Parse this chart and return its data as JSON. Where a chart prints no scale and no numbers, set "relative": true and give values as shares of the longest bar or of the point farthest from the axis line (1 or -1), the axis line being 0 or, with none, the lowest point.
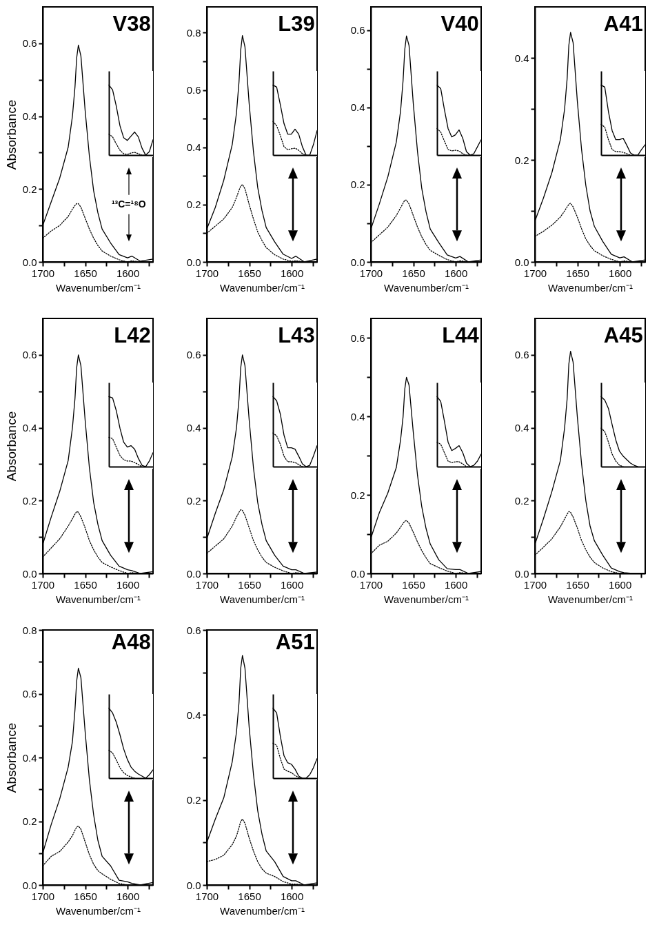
{
  "chart_data": [
    {
      "type": "line",
      "title": "V38",
      "ylabel": "Absorbance",
      "xlabel": "Wavenumber/cm⁻¹",
      "xlim": [
        1700,
        1570
      ],
      "xticks": [
        1700,
        {
          "value": 1675,
          "label": null
        },
        1650,
        {
          "value": 1625,
          "label": null
        },
        1600,
        {
          "value": 1575,
          "label": null
        }
      ],
      "ylim": [
        0,
        0.7
      ],
      "yticks": [
        {
          "value": 0,
          "label": "0.0"
        },
        {
          "value": 0.1,
          "label": null
        },
        0.2,
        {
          "value": 0.3,
          "label": null
        },
        0.4,
        {
          "value": 0.5,
          "label": null
        },
        0.6
      ],
      "x": [
        1700,
        1690,
        1680,
        1670,
        1665,
        1662,
        1660,
        1658,
        1655,
        1650,
        1645,
        1640,
        1635,
        1630,
        1620,
        1610,
        1600,
        1595,
        1585,
        1570
      ],
      "annotations": [
        "¹³C=¹⁸O"
      ],
      "series": [
        {
          "color": "#000000",
          "line_style": "solid",
          "values": [
            0.1,
            0.165,
            0.23,
            0.315,
            0.4,
            0.48,
            0.56,
            0.595,
            0.565,
            0.415,
            0.29,
            0.195,
            0.135,
            0.09,
            0.052,
            0.02,
            0.011,
            0.016,
            0.002,
            0.008
          ]
        },
        {
          "color": "#000000",
          "line_style": "dotted",
          "values": [
            0.065,
            0.085,
            0.1,
            0.125,
            0.145,
            0.155,
            0.16,
            0.16,
            0.15,
            0.12,
            0.09,
            0.065,
            0.045,
            0.03,
            0.016,
            0.006,
            0.0,
            0.003,
            0.0,
            0.0
          ]
        }
      ]
    },
    {
      "type": "line",
      "relative": true,
      "categories": [
        null,
        null,
        null,
        null,
        null,
        null,
        null,
        null,
        null,
        null,
        null,
        null,
        null
      ],
      "series": [
        {
          "color": "#000000",
          "line_style": "solid",
          "values": [
            1,
            0.93,
            0.7,
            0.42,
            0.25,
            0.21,
            0.27,
            0.33,
            0.26,
            0.1,
            0.0,
            0.05,
            0.22
          ]
        },
        {
          "color": "#000000",
          "line_style": "dotted",
          "values": [
            0.3,
            0.26,
            0.16,
            0.07,
            0.02,
            0.01,
            0.03,
            0.04,
            0.02,
            0.0,
            0.0,
            null,
            null
          ]
        }
      ]
    },
    {
      "type": "line",
      "title": "L39",
      "xlabel": "Wavenumber/cm⁻¹",
      "xlim": [
        1700,
        1570
      ],
      "xticks": [
        1700,
        {
          "value": 1675,
          "label": null
        },
        1650,
        {
          "value": 1625,
          "label": null
        },
        1600,
        {
          "value": 1575,
          "label": null
        }
      ],
      "ylim": [
        0,
        0.89
      ],
      "yticks": [
        {
          "value": 0,
          "label": "0.0"
        },
        {
          "value": 0.1,
          "label": null
        },
        0.2,
        {
          "value": 0.3,
          "label": null
        },
        0.4,
        {
          "value": 0.5,
          "label": null
        },
        0.6,
        {
          "value": 0.7,
          "label": null
        },
        0.8
      ],
      "x": [
        1700,
        1690,
        1680,
        1670,
        1665,
        1662,
        1660,
        1658,
        1655,
        1650,
        1645,
        1640,
        1635,
        1630,
        1620,
        1610,
        1600,
        1595,
        1585,
        1570
      ],
      "series": [
        {
          "color": "#000000",
          "line_style": "solid",
          "values": [
            0.115,
            0.19,
            0.285,
            0.41,
            0.52,
            0.63,
            0.74,
            0.79,
            0.75,
            0.55,
            0.385,
            0.26,
            0.18,
            0.12,
            0.07,
            0.027,
            0.012,
            0.02,
            0.0,
            0.01
          ]
        },
        {
          "color": "#000000",
          "line_style": "dotted",
          "values": [
            0.1,
            0.125,
            0.15,
            0.19,
            0.225,
            0.25,
            0.265,
            0.27,
            0.255,
            0.2,
            0.15,
            0.105,
            0.075,
            0.05,
            0.025,
            0.01,
            0.002,
            0.004,
            0.0,
            0.0
          ]
        }
      ]
    },
    {
      "type": "line",
      "relative": true,
      "categories": [
        null,
        null,
        null,
        null,
        null,
        null,
        null,
        null,
        null,
        null,
        null,
        null,
        null
      ],
      "series": [
        {
          "color": "#000000",
          "line_style": "solid",
          "values": [
            1,
            0.97,
            0.72,
            0.45,
            0.3,
            0.3,
            0.37,
            0.3,
            0.12,
            0.0,
            0.0,
            0.15,
            0.35
          ]
        },
        {
          "color": "#000000",
          "line_style": "dotted",
          "values": [
            0.48,
            0.42,
            0.28,
            0.12,
            0.08,
            0.09,
            0.1,
            0.07,
            0.02,
            0.0,
            null,
            null,
            null
          ]
        }
      ]
    },
    {
      "type": "line",
      "title": "V40",
      "xlabel": "Wavenumber/cm⁻¹",
      "xlim": [
        1700,
        1570
      ],
      "xticks": [
        1700,
        {
          "value": 1675,
          "label": null
        },
        1650,
        {
          "value": 1625,
          "label": null
        },
        1600,
        {
          "value": 1575,
          "label": null
        }
      ],
      "ylim": [
        0,
        0.66
      ],
      "yticks": [
        {
          "value": 0,
          "label": "0.0"
        },
        {
          "value": 0.1,
          "label": null
        },
        0.2,
        {
          "value": 0.3,
          "label": null
        },
        0.4,
        {
          "value": 0.5,
          "label": null
        },
        0.6
      ],
      "x": [
        1700,
        1690,
        1680,
        1670,
        1665,
        1662,
        1660,
        1658,
        1655,
        1650,
        1645,
        1640,
        1635,
        1630,
        1620,
        1610,
        1600,
        1595,
        1585,
        1570
      ],
      "series": [
        {
          "color": "#000000",
          "line_style": "solid",
          "values": [
            0.085,
            0.15,
            0.22,
            0.31,
            0.39,
            0.47,
            0.55,
            0.585,
            0.56,
            0.41,
            0.285,
            0.19,
            0.13,
            0.085,
            0.05,
            0.018,
            0.01,
            0.014,
            0.0,
            0.005
          ]
        },
        {
          "color": "#000000",
          "line_style": "dotted",
          "values": [
            0.05,
            0.07,
            0.09,
            0.12,
            0.14,
            0.152,
            0.16,
            0.16,
            0.15,
            0.12,
            0.09,
            0.065,
            0.045,
            0.03,
            0.017,
            0.006,
            0.0,
            0.003,
            0.0,
            0.0
          ]
        }
      ]
    },
    {
      "type": "line",
      "relative": true,
      "categories": [
        null,
        null,
        null,
        null,
        null,
        null,
        null,
        null,
        null,
        null,
        null,
        null,
        null
      ],
      "series": [
        {
          "color": "#000000",
          "line_style": "solid",
          "values": [
            1,
            0.95,
            0.65,
            0.38,
            0.26,
            0.29,
            0.36,
            0.24,
            0.05,
            0.0,
            0.02,
            0.12,
            0.22
          ]
        },
        {
          "color": "#000000",
          "line_style": "dotted",
          "values": [
            0.38,
            0.33,
            0.2,
            0.08,
            0.06,
            0.07,
            0.06,
            0.02,
            0.0,
            0.0,
            null,
            null,
            null
          ]
        }
      ]
    },
    {
      "type": "line",
      "title": "A41",
      "xlabel": "Wavenumber/cm⁻¹",
      "xlim": [
        1700,
        1570
      ],
      "xticks": [
        1700,
        {
          "value": 1675,
          "label": null
        },
        1650,
        {
          "value": 1625,
          "label": null
        },
        1600,
        {
          "value": 1575,
          "label": null
        }
      ],
      "ylim": [
        0,
        0.5
      ],
      "yticks": [
        {
          "value": 0,
          "label": "0.0"
        },
        {
          "value": 0.1,
          "label": null
        },
        0.2,
        {
          "value": 0.3,
          "label": null
        },
        0.4
      ],
      "x": [
        1700,
        1690,
        1680,
        1670,
        1665,
        1662,
        1660,
        1658,
        1655,
        1650,
        1645,
        1640,
        1635,
        1630,
        1620,
        1610,
        1600,
        1595,
        1585,
        1570
      ],
      "series": [
        {
          "color": "#000000",
          "line_style": "solid",
          "values": [
            0.08,
            0.125,
            0.175,
            0.24,
            0.3,
            0.36,
            0.425,
            0.45,
            0.43,
            0.315,
            0.22,
            0.15,
            0.1,
            0.07,
            0.04,
            0.015,
            0.008,
            0.01,
            0.0,
            0.004
          ]
        },
        {
          "color": "#000000",
          "line_style": "dotted",
          "values": [
            0.05,
            0.06,
            0.072,
            0.088,
            0.1,
            0.108,
            0.113,
            0.115,
            0.108,
            0.088,
            0.065,
            0.045,
            0.032,
            0.022,
            0.012,
            0.005,
            0.0,
            0.002,
            0.0,
            0.0
          ]
        }
      ]
    },
    {
      "type": "line",
      "relative": true,
      "categories": [
        null,
        null,
        null,
        null,
        null,
        null,
        null,
        null,
        null,
        null,
        null,
        null,
        null
      ],
      "series": [
        {
          "color": "#000000",
          "line_style": "solid",
          "values": [
            1,
            0.97,
            0.62,
            0.35,
            0.22,
            0.22,
            0.24,
            0.14,
            0.03,
            0.0,
            0.0,
            0.08,
            0.15
          ]
        },
        {
          "color": "#000000",
          "line_style": "dotted",
          "values": [
            0.44,
            0.4,
            0.22,
            0.08,
            0.05,
            0.05,
            0.04,
            0.02,
            0.0,
            null,
            null,
            null,
            null
          ]
        }
      ]
    },
    {
      "type": "line",
      "title": "L42",
      "ylabel": "Absorbance",
      "xlabel": "Wavenumber/cm⁻¹",
      "xlim": [
        1700,
        1570
      ],
      "xticks": [
        1700,
        {
          "value": 1675,
          "label": null
        },
        1650,
        {
          "value": 1625,
          "label": null
        },
        1600,
        {
          "value": 1575,
          "label": null
        }
      ],
      "ylim": [
        0,
        0.7
      ],
      "yticks": [
        {
          "value": 0,
          "label": "0.0"
        },
        {
          "value": 0.1,
          "label": null
        },
        0.2,
        {
          "value": 0.3,
          "label": null
        },
        0.4,
        {
          "value": 0.5,
          "label": null
        },
        0.6
      ],
      "x": [
        1700,
        1690,
        1680,
        1670,
        1665,
        1662,
        1660,
        1658,
        1655,
        1650,
        1645,
        1640,
        1635,
        1630,
        1620,
        1610,
        1600,
        1595,
        1585,
        1570
      ],
      "series": [
        {
          "color": "#000000",
          "line_style": "solid",
          "values": [
            0.08,
            0.155,
            0.225,
            0.31,
            0.4,
            0.48,
            0.565,
            0.6,
            0.57,
            0.42,
            0.29,
            0.195,
            0.135,
            0.09,
            0.05,
            0.02,
            0.01,
            0.008,
            0.0,
            0.005
          ]
        },
        {
          "color": "#000000",
          "line_style": "dotted",
          "values": [
            0.045,
            0.07,
            0.095,
            0.13,
            0.15,
            0.163,
            0.17,
            0.168,
            0.155,
            0.125,
            0.09,
            0.065,
            0.045,
            0.03,
            0.018,
            0.008,
            0.0,
            0.002,
            0.0,
            0.0
          ]
        }
      ]
    },
    {
      "type": "line",
      "relative": true,
      "categories": [
        null,
        null,
        null,
        null,
        null,
        null,
        null,
        null,
        null,
        null,
        null,
        null,
        null
      ],
      "series": [
        {
          "color": "#000000",
          "line_style": "solid",
          "values": [
            1,
            0.98,
            0.8,
            0.55,
            0.35,
            0.28,
            0.3,
            0.25,
            0.12,
            0.02,
            0.0,
            0.08,
            0.2
          ]
        },
        {
          "color": "#000000",
          "line_style": "dotted",
          "values": [
            0.42,
            0.4,
            0.28,
            0.16,
            0.1,
            0.08,
            0.08,
            0.06,
            0.03,
            0.0,
            null,
            null,
            null
          ]
        }
      ]
    },
    {
      "type": "line",
      "title": "L43",
      "xlabel": "Wavenumber/cm⁻¹",
      "xlim": [
        1700,
        1570
      ],
      "xticks": [
        1700,
        {
          "value": 1675,
          "label": null
        },
        1650,
        {
          "value": 1625,
          "label": null
        },
        1600,
        {
          "value": 1575,
          "label": null
        }
      ],
      "ylim": [
        0,
        0.7
      ],
      "yticks": [
        {
          "value": 0,
          "label": "0.0"
        },
        {
          "value": 0.1,
          "label": null
        },
        0.2,
        {
          "value": 0.3,
          "label": null
        },
        0.4,
        {
          "value": 0.5,
          "label": null
        },
        0.6
      ],
      "x": [
        1700,
        1690,
        1680,
        1670,
        1665,
        1662,
        1660,
        1658,
        1655,
        1650,
        1645,
        1640,
        1635,
        1630,
        1620,
        1610,
        1600,
        1595,
        1585,
        1570
      ],
      "series": [
        {
          "color": "#000000",
          "line_style": "solid",
          "values": [
            0.095,
            0.165,
            0.23,
            0.32,
            0.4,
            0.48,
            0.565,
            0.6,
            0.57,
            0.42,
            0.29,
            0.195,
            0.135,
            0.09,
            0.05,
            0.02,
            0.01,
            0.01,
            0.0,
            0.004
          ]
        },
        {
          "color": "#000000",
          "line_style": "dotted",
          "values": [
            0.055,
            0.075,
            0.095,
            0.13,
            0.155,
            0.168,
            0.175,
            0.173,
            0.16,
            0.125,
            0.09,
            0.065,
            0.045,
            0.03,
            0.017,
            0.007,
            0.0,
            0.002,
            0.0,
            0.0
          ]
        }
      ]
    },
    {
      "type": "line",
      "relative": true,
      "categories": [
        null,
        null,
        null,
        null,
        null,
        null,
        null,
        null,
        null,
        null,
        null,
        null,
        null
      ],
      "series": [
        {
          "color": "#000000",
          "line_style": "solid",
          "values": [
            1,
            0.94,
            0.75,
            0.45,
            0.27,
            0.27,
            0.25,
            0.15,
            0.04,
            0.0,
            0.02,
            0.15,
            0.3
          ]
        },
        {
          "color": "#000000",
          "line_style": "dotted",
          "values": [
            0.48,
            0.44,
            0.32,
            0.15,
            0.07,
            0.07,
            0.06,
            0.03,
            0.0,
            null,
            null,
            null,
            null
          ]
        }
      ]
    },
    {
      "type": "line",
      "title": "L44",
      "xlabel": "Wavenumber/cm⁻¹",
      "xlim": [
        1700,
        1570
      ],
      "xticks": [
        1700,
        {
          "value": 1675,
          "label": null
        },
        1650,
        {
          "value": 1625,
          "label": null
        },
        1600,
        {
          "value": 1575,
          "label": null
        }
      ],
      "ylim": [
        0,
        0.65
      ],
      "yticks": [
        {
          "value": 0,
          "label": "0.0"
        },
        {
          "value": 0.1,
          "label": null
        },
        0.2,
        {
          "value": 0.3,
          "label": null
        },
        0.4,
        {
          "value": 0.5,
          "label": null
        },
        0.6
      ],
      "x": [
        1700,
        1690,
        1680,
        1670,
        1665,
        1662,
        1660,
        1658,
        1655,
        1650,
        1645,
        1640,
        1635,
        1630,
        1620,
        1610,
        1600,
        1595,
        1585,
        1570
      ],
      "series": [
        {
          "color": "#000000",
          "line_style": "solid",
          "values": [
            0.09,
            0.155,
            0.205,
            0.27,
            0.34,
            0.4,
            0.47,
            0.5,
            0.48,
            0.36,
            0.25,
            0.17,
            0.115,
            0.075,
            0.035,
            0.012,
            0.01,
            0.01,
            0.0,
            0.005
          ]
        },
        {
          "color": "#000000",
          "line_style": "dotted",
          "values": [
            0.05,
            0.072,
            0.082,
            0.103,
            0.118,
            0.128,
            0.133,
            0.135,
            0.128,
            0.105,
            0.08,
            0.058,
            0.04,
            0.025,
            0.015,
            0.006,
            0.0,
            0.002,
            0.0,
            0.0
          ]
        }
      ]
    },
    {
      "type": "line",
      "relative": true,
      "categories": [
        null,
        null,
        null,
        null,
        null,
        null,
        null,
        null,
        null,
        null,
        null,
        null,
        null
      ],
      "series": [
        {
          "color": "#000000",
          "line_style": "solid",
          "values": [
            1,
            0.93,
            0.65,
            0.35,
            0.23,
            0.26,
            0.3,
            0.2,
            0.05,
            0.0,
            0.02,
            0.08,
            0.18
          ]
        },
        {
          "color": "#000000",
          "line_style": "dotted",
          "values": [
            0.35,
            0.32,
            0.2,
            0.08,
            0.06,
            0.07,
            0.07,
            0.04,
            0.0,
            0.0,
            null,
            null,
            null
          ]
        }
      ]
    },
    {
      "type": "line",
      "title": "A45",
      "xlabel": "Wavenumber/cm⁻¹",
      "xlim": [
        1700,
        1570
      ],
      "xticks": [
        1700,
        {
          "value": 1675,
          "label": null
        },
        1650,
        {
          "value": 1625,
          "label": null
        },
        1600,
        {
          "value": 1575,
          "label": null
        }
      ],
      "ylim": [
        0,
        0.7
      ],
      "yticks": [
        {
          "value": 0,
          "label": "0.0"
        },
        {
          "value": 0.1,
          "label": null
        },
        0.2,
        {
          "value": 0.3,
          "label": null
        },
        0.4,
        {
          "value": 0.5,
          "label": null
        },
        0.6
      ],
      "x": [
        1700,
        1690,
        1680,
        1670,
        1665,
        1662,
        1660,
        1658,
        1655,
        1650,
        1645,
        1640,
        1635,
        1630,
        1620,
        1610,
        1600,
        1595,
        1585,
        1570
      ],
      "series": [
        {
          "color": "#000000",
          "line_style": "solid",
          "values": [
            0.08,
            0.15,
            0.225,
            0.31,
            0.4,
            0.48,
            0.575,
            0.61,
            0.58,
            0.43,
            0.3,
            0.2,
            0.13,
            0.09,
            0.05,
            0.015,
            0.005,
            0.002,
            0.0,
            0.0
          ]
        },
        {
          "color": "#000000",
          "line_style": "dotted",
          "values": [
            0.05,
            0.072,
            0.095,
            0.128,
            0.15,
            0.163,
            0.17,
            0.168,
            0.155,
            0.125,
            0.09,
            0.065,
            0.045,
            0.03,
            0.015,
            0.005,
            0.0,
            0.0,
            0.0,
            0.0
          ]
        }
      ]
    },
    {
      "type": "line",
      "relative": true,
      "categories": [
        null,
        null,
        null,
        null,
        null,
        null,
        null,
        null,
        null,
        null,
        null,
        null,
        null
      ],
      "series": [
        {
          "color": "#000000",
          "line_style": "solid",
          "values": [
            1,
            0.95,
            0.83,
            0.6,
            0.38,
            0.22,
            0.15,
            0.1,
            0.05,
            0.02,
            0.0,
            null,
            null
          ]
        },
        {
          "color": "#000000",
          "line_style": "dotted",
          "values": [
            0.55,
            0.5,
            0.35,
            0.18,
            0.08,
            0.02,
            0.0,
            null,
            null,
            null,
            null,
            null,
            null
          ]
        }
      ]
    },
    {
      "type": "line",
      "title": "A48",
      "ylabel": "Absorbance",
      "xlabel": "Wavenumber/cm⁻¹",
      "xlim": [
        1700,
        1570
      ],
      "xticks": [
        1700,
        {
          "value": 1675,
          "label": null
        },
        1650,
        {
          "value": 1625,
          "label": null
        },
        1600,
        {
          "value": 1575,
          "label": null
        }
      ],
      "ylim": [
        0,
        0.8
      ],
      "yticks": [
        {
          "value": 0,
          "label": "0.0"
        },
        {
          "value": 0.1,
          "label": null
        },
        0.2,
        {
          "value": 0.3,
          "label": null
        },
        0.4,
        {
          "value": 0.5,
          "label": null
        },
        0.6,
        {
          "value": 0.7,
          "label": null
        },
        0.8
      ],
      "x": [
        1700,
        1690,
        1680,
        1670,
        1665,
        1662,
        1660,
        1658,
        1655,
        1650,
        1645,
        1640,
        1635,
        1630,
        1620,
        1610,
        1600,
        1595,
        1585,
        1570
      ],
      "series": [
        {
          "color": "#000000",
          "line_style": "solid",
          "values": [
            0.1,
            0.19,
            0.27,
            0.37,
            0.45,
            0.55,
            0.64,
            0.68,
            0.65,
            0.48,
            0.33,
            0.22,
            0.14,
            0.09,
            0.06,
            0.015,
            0.01,
            0.005,
            0.0,
            0.008
          ]
        },
        {
          "color": "#000000",
          "line_style": "dotted",
          "values": [
            0.06,
            0.09,
            0.105,
            0.135,
            0.155,
            0.172,
            0.182,
            0.185,
            0.175,
            0.135,
            0.095,
            0.065,
            0.045,
            0.035,
            0.018,
            0.005,
            0.0,
            0.0,
            0.0,
            0.0
          ]
        }
      ]
    },
    {
      "type": "line",
      "relative": true,
      "categories": [
        null,
        null,
        null,
        null,
        null,
        null,
        null,
        null,
        null,
        null,
        null,
        null,
        null
      ],
      "series": [
        {
          "color": "#000000",
          "line_style": "solid",
          "values": [
            1,
            0.93,
            0.8,
            0.62,
            0.42,
            0.27,
            0.16,
            0.1,
            0.06,
            0.03,
            0.0,
            0.05,
            0.12
          ]
        },
        {
          "color": "#000000",
          "line_style": "dotted",
          "values": [
            0.4,
            0.36,
            0.26,
            0.15,
            0.08,
            0.04,
            0.02,
            0.0,
            null,
            null,
            null,
            null,
            null
          ]
        }
      ]
    },
    {
      "type": "line",
      "title": "A51",
      "xlabel": "Wavenumber/cm⁻¹",
      "xlim": [
        1700,
        1570
      ],
      "xticks": [
        1700,
        {
          "value": 1675,
          "label": null
        },
        1650,
        {
          "value": 1625,
          "label": null
        },
        1600,
        {
          "value": 1575,
          "label": null
        }
      ],
      "ylim": [
        0,
        0.6
      ],
      "yticks": [
        {
          "value": 0,
          "label": "0.0"
        },
        {
          "value": 0.1,
          "label": null
        },
        0.2,
        {
          "value": 0.3,
          "label": null
        },
        0.4,
        {
          "value": 0.5,
          "label": null
        },
        0.6
      ],
      "x": [
        1700,
        1690,
        1680,
        1670,
        1665,
        1662,
        1660,
        1658,
        1655,
        1650,
        1645,
        1640,
        1635,
        1630,
        1620,
        1610,
        1600,
        1595,
        1585,
        1570
      ],
      "series": [
        {
          "color": "#000000",
          "line_style": "solid",
          "values": [
            0.1,
            0.155,
            0.205,
            0.29,
            0.36,
            0.43,
            0.51,
            0.54,
            0.51,
            0.37,
            0.26,
            0.175,
            0.12,
            0.08,
            0.055,
            0.02,
            0.01,
            0.01,
            0.0,
            0.005
          ]
        },
        {
          "color": "#000000",
          "line_style": "dotted",
          "values": [
            0.055,
            0.06,
            0.07,
            0.095,
            0.115,
            0.135,
            0.15,
            0.155,
            0.145,
            0.11,
            0.08,
            0.055,
            0.038,
            0.028,
            0.02,
            0.008,
            0.002,
            0.002,
            0.0,
            0.0
          ]
        }
      ]
    },
    {
      "type": "line",
      "relative": true,
      "categories": [
        null,
        null,
        null,
        null,
        null,
        null,
        null,
        null,
        null,
        null,
        null,
        null,
        null
      ],
      "series": [
        {
          "color": "#000000",
          "line_style": "solid",
          "values": [
            1,
            0.93,
            0.6,
            0.32,
            0.22,
            0.2,
            0.13,
            0.03,
            0.0,
            0.0,
            0.05,
            0.15,
            0.28
          ]
        },
        {
          "color": "#000000",
          "line_style": "dotted",
          "values": [
            0.5,
            0.47,
            0.28,
            0.13,
            0.1,
            0.08,
            0.04,
            0.01,
            0.0,
            null,
            null,
            null,
            null
          ]
        }
      ]
    }
  ]
}
